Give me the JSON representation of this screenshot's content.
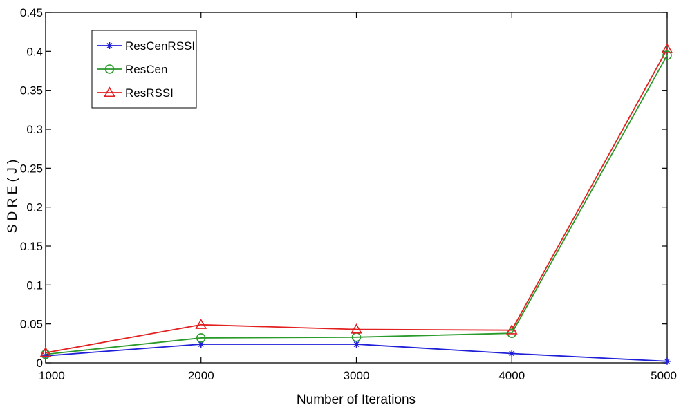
{
  "chart_data": {
    "type": "line",
    "title": "",
    "xlabel": "Number of Iterations",
    "ylabel": "S D R E ( J )",
    "x": [
      1000,
      2000,
      3000,
      4000,
      5000
    ],
    "xlim": [
      1000,
      5000
    ],
    "ylim": [
      0,
      0.45
    ],
    "xticks": [
      1000,
      2000,
      3000,
      4000,
      5000
    ],
    "xtick_labels": [
      "1000",
      "2000",
      "3000",
      "4000",
      "5000"
    ],
    "yticks": [
      0,
      0.05,
      0.1,
      0.15,
      0.2,
      0.25,
      0.3,
      0.35,
      0.4,
      0.45
    ],
    "ytick_labels": [
      "0",
      "0.05",
      "0.1",
      "0.15",
      "0.2",
      "0.25",
      "0.3",
      "0.35",
      "0.4",
      "0.45"
    ],
    "grid": false,
    "legend_position": "top-left",
    "series": [
      {
        "name": "ResCenRSSI",
        "color": "#1f1fd8",
        "marker": "asterisk",
        "values": [
          0.009,
          0.024,
          0.024,
          0.012,
          0.002
        ]
      },
      {
        "name": "ResCen",
        "color": "#2a9a2a",
        "marker": "circle",
        "values": [
          0.011,
          0.032,
          0.033,
          0.038,
          0.395
        ]
      },
      {
        "name": "ResRSSI",
        "color": "#e32020",
        "marker": "triangle",
        "values": [
          0.013,
          0.049,
          0.043,
          0.042,
          0.403
        ]
      }
    ]
  }
}
